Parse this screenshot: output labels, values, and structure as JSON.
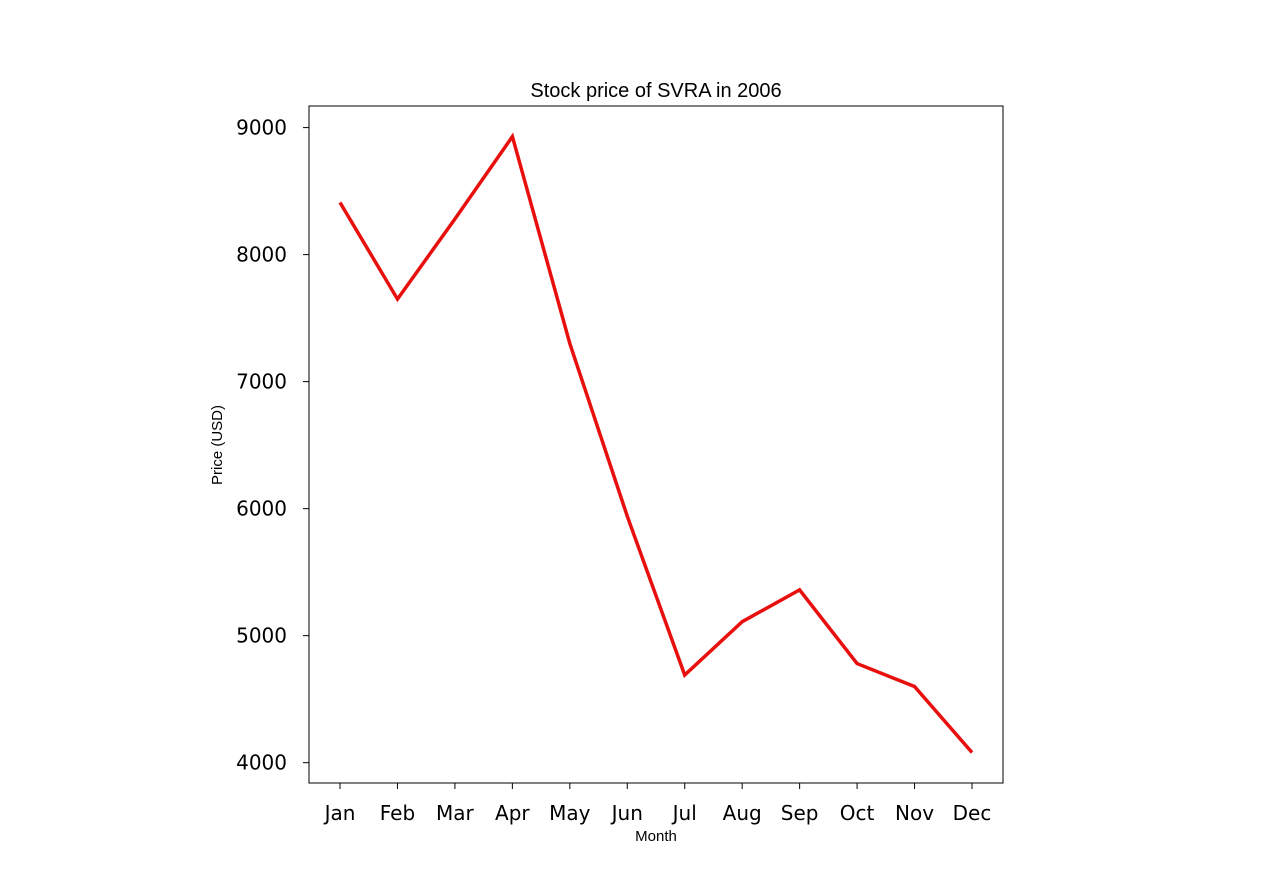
{
  "chart_data": {
    "type": "line",
    "title": "Stock price of SVRA in 2006",
    "xlabel": "Month",
    "ylabel": "Price (USD)",
    "categories": [
      "Jan",
      "Feb",
      "Mar",
      "Apr",
      "May",
      "Jun",
      "Jul",
      "Aug",
      "Sep",
      "Oct",
      "Nov",
      "Dec"
    ],
    "series": [
      {
        "values": [
          8410,
          7650,
          8280,
          8930,
          7300,
          5940,
          4690,
          5110,
          5360,
          4780,
          4600,
          4080
        ],
        "color": "#e8100e"
      }
    ],
    "ylim": [
      3840,
      9170
    ],
    "yticks": [
      4000,
      5000,
      6000,
      7000,
      8000,
      9000
    ],
    "grid": false,
    "legend": "none"
  }
}
